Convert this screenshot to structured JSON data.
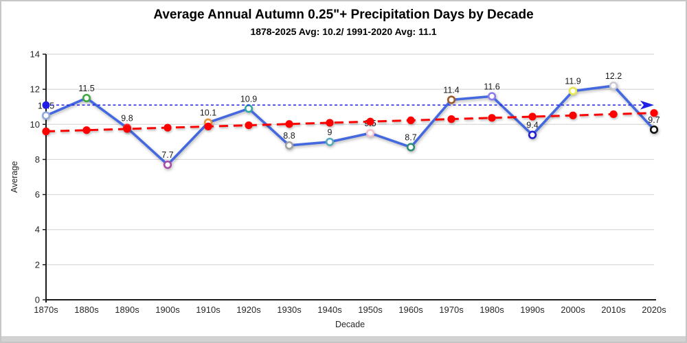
{
  "title": "Average Annual Autumn 0.25\"+ Precipitation Days by Decade",
  "subtitle": "1878-2025 Avg: 10.2/ 1991-2020 Avg: 11.1",
  "chart_data": {
    "type": "line",
    "title": "Average Annual Autumn 0.25\"+ Precipitation Days by Decade",
    "subtitle": "1878-2025 Avg: 10.2/ 1991-2020 Avg: 11.1",
    "xlabel": "Decade",
    "ylabel": "Average",
    "ylim": [
      0,
      14
    ],
    "ytick_step": 2,
    "grid": true,
    "legend": "none",
    "categories": [
      "1870s",
      "1880s",
      "1890s",
      "1900s",
      "1910s",
      "1920s",
      "1930s",
      "1940s",
      "1950s",
      "1960s",
      "1970s",
      "1980s",
      "1990s",
      "2000s",
      "2010s",
      "2020s"
    ],
    "series": [
      {
        "name": "decade_average",
        "type": "line",
        "color": "#4468DF",
        "values": [
          10.5,
          11.5,
          9.8,
          7.7,
          10.1,
          10.9,
          8.8,
          9,
          9.5,
          8.7,
          11.4,
          11.6,
          9.4,
          11.9,
          12.2,
          9.7
        ],
        "point_labels": [
          "10.5",
          "11.5",
          "9.8",
          "7.7",
          "10.1",
          "10.9",
          "8.8",
          "9",
          "9.5",
          "8.7",
          "11.4",
          "11.6",
          "9.4",
          "11.9",
          "12.2",
          "9.7"
        ],
        "marker_colors": [
          "#8FAADC",
          "#3FA93F",
          "#FF2A2A",
          "#A64CA6",
          "#E8952E",
          "#35A8A2",
          "#A0A0A0",
          "#55AABB",
          "#F2BFCB",
          "#2F8C74",
          "#9C5A28",
          "#8E7CE8",
          "#2020D0",
          "#E8E84A",
          "#C9C9D4",
          "#111111"
        ]
      },
      {
        "name": "linear_trend",
        "type": "trendline",
        "style": "dashed",
        "color": "#FF0000",
        "start": 9.6,
        "end": 10.65
      },
      {
        "name": "avg_1991_2020_reference",
        "type": "reference_line",
        "style": "dashed-arrow",
        "color": "#1F1FE8",
        "value": 11.1
      }
    ]
  }
}
